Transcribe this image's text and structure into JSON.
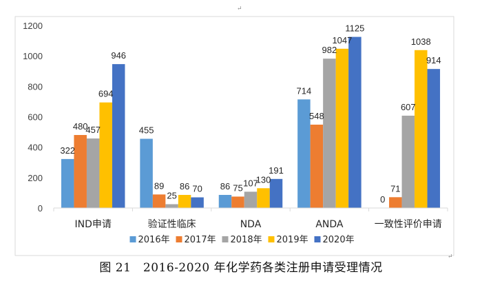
{
  "chart_data": {
    "type": "bar",
    "categories": [
      "IND申请",
      "验证性临床",
      "NDA",
      "ANDA",
      "一致性评价申请"
    ],
    "series": [
      {
        "name": "2016年",
        "color": "#5b9bd5",
        "values": [
          322,
          455,
          86,
          714,
          0
        ]
      },
      {
        "name": "2017年",
        "color": "#ed7d31",
        "values": [
          480,
          89,
          75,
          548,
          71
        ]
      },
      {
        "name": "2018年",
        "color": "#a5a5a5",
        "values": [
          457,
          25,
          107,
          982,
          607
        ]
      },
      {
        "name": "2019年",
        "color": "#ffc000",
        "values": [
          694,
          86,
          130,
          1047,
          1038
        ]
      },
      {
        "name": "2020年",
        "color": "#4472c4",
        "values": [
          946,
          70,
          191,
          1125,
          914
        ]
      }
    ],
    "data_labels": [
      [
        "322",
        "480",
        "457",
        "694",
        "946"
      ],
      [
        "455",
        "89",
        "25",
        "86",
        "70"
      ],
      [
        "86",
        "75",
        "107",
        "130",
        "191"
      ],
      [
        "714",
        "548",
        "982",
        "1047",
        "1125"
      ],
      [
        "0",
        "71",
        "607",
        "1038",
        "914"
      ]
    ],
    "y_ticks": [
      "0",
      "200",
      "400",
      "600",
      "800",
      "1000",
      "1200"
    ],
    "ylim": [
      0,
      1200
    ],
    "grid": false,
    "legend_position": "bottom"
  },
  "caption": "图 21　2016-2020 年化学药各类注册申请受理情况",
  "marks": {
    "paragraph_mark": "↵"
  }
}
